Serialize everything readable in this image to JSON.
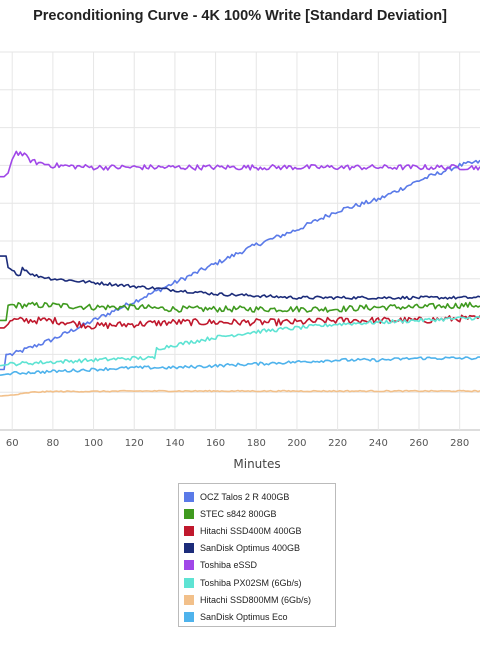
{
  "chart_data": {
    "type": "line",
    "title": "Preconditioning Curve - 4K 100% Write [Standard Deviation]",
    "xlabel": "Minutes",
    "ylabel": "",
    "x_ticks": [
      60,
      80,
      100,
      120,
      140,
      160,
      180,
      200,
      220,
      240,
      260,
      280
    ],
    "xlim": [
      54,
      290
    ],
    "ylim": [
      0,
      10
    ],
    "grid": true,
    "legend_position": "bottom",
    "series": [
      {
        "name": "OCZ Talos 2 R 400GB",
        "color": "#5a7ae8",
        "x": [
          54,
          56,
          57,
          60,
          70,
          80,
          100,
          120,
          140,
          160,
          180,
          200,
          220,
          240,
          260,
          280,
          290
        ],
        "y": [
          1.6,
          1.6,
          2.0,
          2.0,
          2.2,
          2.4,
          2.9,
          3.4,
          3.9,
          4.4,
          4.9,
          5.3,
          5.8,
          6.1,
          6.6,
          7.0,
          7.1
        ]
      },
      {
        "name": "STEC s842 800GB",
        "color": "#3f9a1f",
        "x": [
          54,
          57,
          58,
          60,
          80,
          100,
          120,
          140,
          160,
          180,
          200,
          220,
          240,
          260,
          280,
          290
        ],
        "y": [
          2.9,
          2.9,
          3.3,
          3.3,
          3.3,
          3.25,
          3.25,
          3.2,
          3.2,
          3.2,
          3.2,
          3.2,
          3.25,
          3.25,
          3.3,
          3.3
        ]
      },
      {
        "name": "Hitachi SSD400M 400GB",
        "color": "#c0182d",
        "x": [
          54,
          56,
          60,
          80,
          100,
          120,
          140,
          160,
          180,
          200,
          220,
          240,
          260,
          280,
          290
        ],
        "y": [
          2.7,
          2.7,
          2.9,
          2.9,
          2.75,
          2.8,
          2.85,
          2.85,
          2.85,
          2.85,
          2.9,
          2.9,
          2.9,
          2.95,
          2.95
        ]
      },
      {
        "name": "SanDisk Optimus 400GB",
        "color": "#1c2c7a",
        "x": [
          54,
          57,
          58,
          60,
          64,
          65,
          70,
          80,
          100,
          120,
          140,
          160,
          180,
          200,
          220,
          240,
          260,
          280,
          290
        ],
        "y": [
          4.6,
          4.6,
          4.3,
          4.2,
          4.1,
          4.3,
          4.1,
          4.0,
          3.9,
          3.8,
          3.7,
          3.6,
          3.55,
          3.5,
          3.5,
          3.5,
          3.5,
          3.5,
          3.5
        ]
      },
      {
        "name": "Toshiba eSSD",
        "color": "#a047e8",
        "x": [
          54,
          56,
          58,
          60,
          62,
          65,
          70,
          80,
          100,
          120,
          140,
          160,
          180,
          200,
          220,
          240,
          260,
          280,
          290
        ],
        "y": [
          6.7,
          6.7,
          6.8,
          7.2,
          7.35,
          7.3,
          7.1,
          7.0,
          6.95,
          6.95,
          6.95,
          6.95,
          6.95,
          6.95,
          6.95,
          6.95,
          6.95,
          6.95,
          6.95
        ]
      },
      {
        "name": "Toshiba PX02SM (6Gb/s)",
        "color": "#5ee3d3",
        "x": [
          54,
          60,
          80,
          100,
          120,
          130,
          131,
          140,
          160,
          180,
          200,
          220,
          240,
          260,
          280,
          290
        ],
        "y": [
          1.7,
          1.75,
          1.8,
          1.85,
          1.9,
          1.9,
          2.15,
          2.25,
          2.45,
          2.6,
          2.7,
          2.8,
          2.85,
          2.9,
          2.95,
          2.97
        ]
      },
      {
        "name": "Hitachi SSD800MM (6Gb/s)",
        "color": "#f2c08a",
        "x": [
          54,
          60,
          70,
          80,
          100,
          120,
          140,
          160,
          180,
          200,
          220,
          240,
          260,
          280,
          290
        ],
        "y": [
          0.9,
          0.92,
          1.0,
          1.02,
          1.02,
          1.03,
          1.03,
          1.03,
          1.03,
          1.03,
          1.03,
          1.03,
          1.03,
          1.03,
          1.03
        ]
      },
      {
        "name": "SanDisk Optimus Eco",
        "color": "#4fb3ec",
        "x": [
          54,
          60,
          80,
          100,
          120,
          140,
          160,
          180,
          200,
          220,
          240,
          260,
          280,
          290
        ],
        "y": [
          1.45,
          1.5,
          1.55,
          1.6,
          1.65,
          1.65,
          1.7,
          1.75,
          1.8,
          1.85,
          1.85,
          1.9,
          1.9,
          1.9
        ]
      }
    ]
  }
}
